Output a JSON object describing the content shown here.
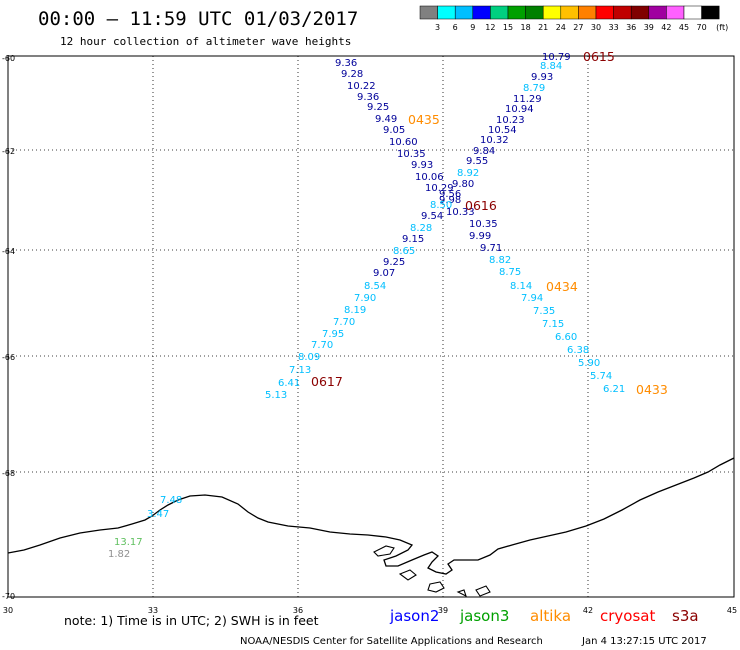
{
  "header": {
    "title": "00:00 – 11:59 UTC 01/03/2017",
    "subtitle": "12 hour collection of altimeter wave heights"
  },
  "legend": {
    "unit": "(ft)",
    "ticks": [
      "3",
      "6",
      "9",
      "12",
      "15",
      "18",
      "21",
      "24",
      "27",
      "30",
      "33",
      "36",
      "39",
      "42",
      "45",
      "70"
    ],
    "colors": [
      "#808080",
      "#00ffff",
      "#00bfff",
      "#0000ff",
      "#00d080",
      "#00a000",
      "#008000",
      "#ffff00",
      "#ffc000",
      "#ff8000",
      "#ff0000",
      "#c00000",
      "#800000",
      "#a000a0",
      "#ff60ff",
      "#ffffff",
      "#000000"
    ]
  },
  "axes": {
    "y_labels": [
      "-60",
      "-62",
      "-64",
      "-66",
      "-68",
      "-70"
    ],
    "x_labels": [
      "30",
      "33",
      "36",
      "39",
      "42",
      "45"
    ]
  },
  "satellite_colors": {
    "jason2": "#0000ff",
    "jason3": "#00a000",
    "altika": "#ff8c00",
    "cryosat": "#c00000",
    "s3a": "#8b0000",
    "cyan": "#00bfff",
    "darkcyan": "#00a0c0",
    "navy": "#000099",
    "grey": "#909090",
    "lightgreen": "#60c060"
  },
  "tracks": {
    "nw_track": [
      {
        "v": "9.36",
        "c": "navy"
      },
      {
        "v": "9.28",
        "c": "navy"
      },
      {
        "v": "10.22",
        "c": "navy"
      },
      {
        "v": "9.36",
        "c": "navy"
      },
      {
        "v": "9.25",
        "c": "navy"
      },
      {
        "v": "9.49",
        "c": "navy"
      },
      {
        "v": "9.05",
        "c": "navy"
      },
      {
        "v": "10.60",
        "c": "navy"
      },
      {
        "v": "10.35",
        "c": "navy"
      },
      {
        "v": "9.93",
        "c": "navy"
      },
      {
        "v": "10.06",
        "c": "navy"
      },
      {
        "v": "10.29",
        "c": "navy"
      },
      {
        "v": "9.98",
        "c": "navy"
      },
      {
        "v": "10.33",
        "c": "navy"
      },
      {
        "v": "10.35",
        "c": "navy"
      },
      {
        "v": "9.99",
        "c": "navy"
      },
      {
        "v": "9.71",
        "c": "navy"
      },
      {
        "v": "8.82",
        "c": "cyan"
      },
      {
        "v": "8.75",
        "c": "cyan"
      },
      {
        "v": "8.14",
        "c": "cyan"
      },
      {
        "v": "7.94",
        "c": "cyan"
      },
      {
        "v": "7.35",
        "c": "cyan"
      },
      {
        "v": "7.15",
        "c": "cyan"
      },
      {
        "v": "6.60",
        "c": "cyan"
      },
      {
        "v": "6.38",
        "c": "cyan"
      },
      {
        "v": "5.90",
        "c": "cyan"
      },
      {
        "v": "5.74",
        "c": "cyan"
      },
      {
        "v": "6.21",
        "c": "cyan"
      }
    ],
    "ne_track": [
      {
        "v": "10.79",
        "c": "navy"
      },
      {
        "v": "8.84",
        "c": "cyan"
      },
      {
        "v": "9.93",
        "c": "navy"
      },
      {
        "v": "8.79",
        "c": "cyan"
      },
      {
        "v": "11.29",
        "c": "navy"
      },
      {
        "v": "10.94",
        "c": "navy"
      },
      {
        "v": "10.23",
        "c": "navy"
      },
      {
        "v": "10.54",
        "c": "navy"
      },
      {
        "v": "10.32",
        "c": "navy"
      },
      {
        "v": "9.84",
        "c": "navy"
      },
      {
        "v": "9.55",
        "c": "navy"
      },
      {
        "v": "8.92",
        "c": "cyan"
      },
      {
        "v": "9.80",
        "c": "navy"
      },
      {
        "v": "9.56",
        "c": "navy"
      },
      {
        "v": "8.50",
        "c": "cyan"
      },
      {
        "v": "9.54",
        "c": "navy"
      },
      {
        "v": "8.28",
        "c": "cyan"
      },
      {
        "v": "9.15",
        "c": "navy"
      },
      {
        "v": "8.65",
        "c": "cyan"
      },
      {
        "v": "9.25",
        "c": "navy"
      },
      {
        "v": "9.07",
        "c": "navy"
      },
      {
        "v": "8.54",
        "c": "cyan"
      },
      {
        "v": "7.90",
        "c": "cyan"
      },
      {
        "v": "8.19",
        "c": "cyan"
      },
      {
        "v": "7.70",
        "c": "cyan"
      },
      {
        "v": "7.95",
        "c": "cyan"
      },
      {
        "v": "7.70",
        "c": "cyan"
      },
      {
        "v": "8.09",
        "c": "cyan"
      },
      {
        "v": "7.13",
        "c": "cyan"
      },
      {
        "v": "6.41",
        "c": "cyan"
      },
      {
        "v": "5.13",
        "c": "cyan"
      }
    ],
    "coast_values": [
      {
        "v": "7.48",
        "c": "cyan"
      },
      {
        "v": "3.47",
        "c": "cyan"
      },
      {
        "v": "13.17",
        "c": "lightgreen"
      },
      {
        "v": "1.82",
        "c": "grey"
      }
    ]
  },
  "time_labels": [
    {
      "t": "0615",
      "c": "s3a"
    },
    {
      "t": "0435",
      "c": "altika"
    },
    {
      "t": "0616",
      "c": "s3a"
    },
    {
      "t": "0434",
      "c": "altika"
    },
    {
      "t": "0617",
      "c": "s3a"
    },
    {
      "t": "0433",
      "c": "altika"
    }
  ],
  "footer": {
    "note": "note: 1) Time is in UTC; 2) SWH is in feet",
    "sat_jason2": "jason2",
    "sat_jason3": "jason3",
    "sat_altika": "altika",
    "sat_cryosat": "cryosat",
    "sat_s3a": "s3a",
    "credit": "NOAA/NESDIS Center for Satellite Applications and Research",
    "timestamp": "Jan  4 13:27:15 UTC 2017"
  }
}
